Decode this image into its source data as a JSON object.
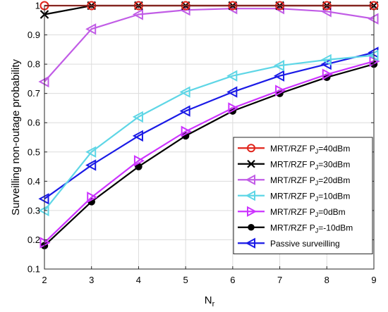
{
  "chart_data": {
    "type": "line",
    "xlabel": "N",
    "xlabel_sub": "r",
    "ylabel": "Surveilling non-outage probability",
    "xlim": [
      2,
      9
    ],
    "ylim": [
      0.1,
      1.0
    ],
    "xticks": [
      2,
      3,
      4,
      5,
      6,
      7,
      8,
      9
    ],
    "yticks": [
      0.1,
      0.2,
      0.3,
      0.4,
      0.5,
      0.6,
      0.7,
      0.8,
      0.9,
      1.0
    ],
    "ytick_labels": [
      "0.1",
      "0.2",
      "0.3",
      "0.4",
      "0.5",
      "0.6",
      "0.7",
      "0.8",
      "0.9",
      "1"
    ],
    "grid": true,
    "legend_position": "bottom-right",
    "x": [
      2,
      3,
      4,
      5,
      6,
      7,
      8,
      9
    ],
    "series": [
      {
        "name": "MRT/RZF P_J=40dBm",
        "legend_prefix": "MRT/RZF P",
        "legend_sub": "J",
        "legend_suffix": "=40dBm",
        "color": "#e0241b",
        "marker": "circle",
        "values": [
          1.0,
          1.0,
          1.0,
          1.0,
          1.0,
          1.0,
          1.0,
          1.0
        ]
      },
      {
        "name": "MRT/RZF P_J=30dBm",
        "legend_prefix": "MRT/RZF P",
        "legend_sub": "J",
        "legend_suffix": "=30dBm",
        "color": "#000000",
        "marker": "x",
        "values": [
          0.97,
          1.0,
          1.0,
          1.0,
          1.0,
          1.0,
          1.0,
          1.0
        ]
      },
      {
        "name": "MRT/RZF P_J=20dBm",
        "legend_prefix": "MRT/RZF P",
        "legend_sub": "J",
        "legend_suffix": "=20dBm",
        "color": "#c15ce6",
        "marker": "triangle-left",
        "values": [
          0.74,
          0.92,
          0.97,
          0.985,
          0.99,
          0.99,
          0.98,
          0.955
        ]
      },
      {
        "name": "MRT/RZF P_J=10dBm",
        "legend_prefix": "MRT/RZF P",
        "legend_sub": "J",
        "legend_suffix": "=10dBm",
        "color": "#5ed6e6",
        "marker": "triangle-left",
        "values": [
          0.3,
          0.5,
          0.62,
          0.705,
          0.76,
          0.795,
          0.815,
          0.83
        ]
      },
      {
        "name": "MRT/RZF P_J=0dBm",
        "legend_prefix": "MRT/RZF P",
        "legend_sub": "J",
        "legend_suffix": "=0dBm",
        "color": "#cc33ff",
        "marker": "triangle-right",
        "values": [
          0.19,
          0.345,
          0.47,
          0.57,
          0.65,
          0.71,
          0.765,
          0.81
        ]
      },
      {
        "name": "MRT/RZF P_J=-10dBm",
        "legend_prefix": "MRT/RZF P",
        "legend_sub": "J",
        "legend_suffix": "=-10dBm",
        "color": "#000000",
        "marker": "filled-circle",
        "values": [
          0.18,
          0.33,
          0.45,
          0.555,
          0.64,
          0.7,
          0.755,
          0.8
        ]
      },
      {
        "name": "Passive surveilling",
        "legend_prefix": "Passive surveilling",
        "legend_sub": "",
        "legend_suffix": "",
        "color": "#1a1ae6",
        "marker": "triangle-left",
        "values": [
          0.34,
          0.455,
          0.555,
          0.64,
          0.705,
          0.76,
          0.8,
          0.84
        ]
      }
    ]
  }
}
